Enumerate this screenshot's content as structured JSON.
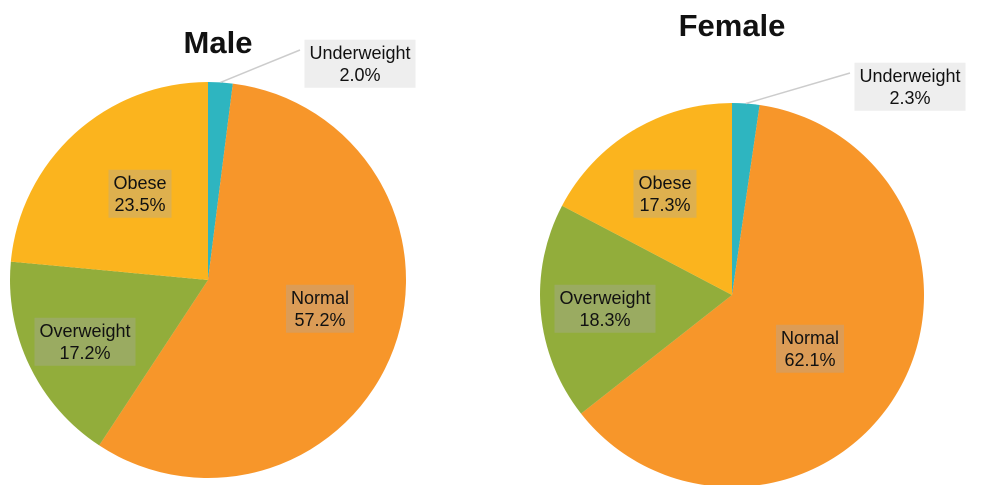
{
  "chart_data": [
    {
      "type": "pie",
      "title": "Male",
      "categories": [
        "Underweight",
        "Normal",
        "Overweight",
        "Obese"
      ],
      "values": [
        2.0,
        57.2,
        17.2,
        23.5
      ],
      "value_labels": [
        "2.0%",
        "57.2%",
        "17.2%",
        "23.5%"
      ],
      "colors": [
        "#2eb5c0",
        "#f7962a",
        "#92ad3b",
        "#fbb41e"
      ]
    },
    {
      "type": "pie",
      "title": "Female",
      "categories": [
        "Underweight",
        "Normal",
        "Overweight",
        "Obese"
      ],
      "values": [
        2.3,
        62.1,
        18.3,
        17.3
      ],
      "value_labels": [
        "2.3%",
        "62.1%",
        "18.3%",
        "17.3%"
      ],
      "colors": [
        "#2eb5c0",
        "#f7962a",
        "#92ad3b",
        "#fbb41e"
      ]
    }
  ]
}
